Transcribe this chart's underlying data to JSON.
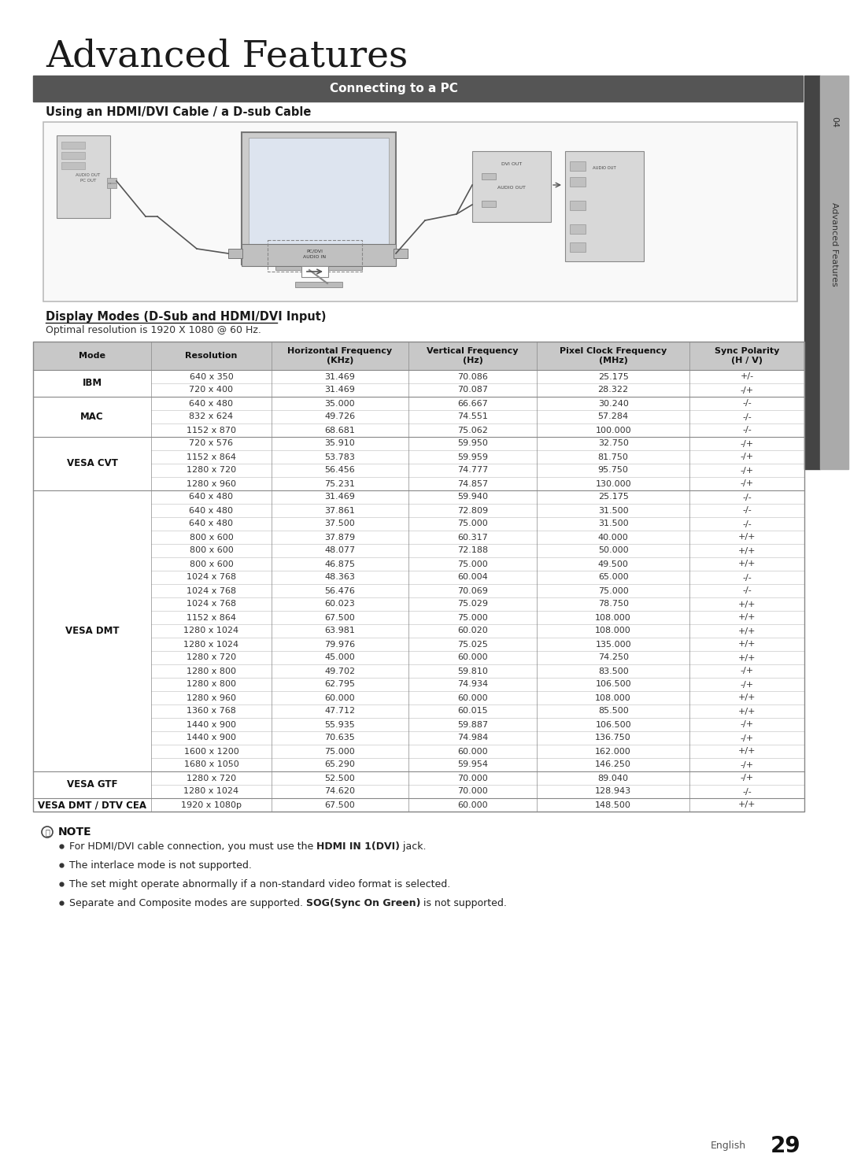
{
  "title": "Advanced Features",
  "section_header": "Connecting to a PC",
  "subsection": "Using an HDMI/DVI Cable / a D-sub Cable",
  "display_modes_title": "Display Modes (D-Sub and HDMI/DVI Input)",
  "optimal_resolution": "Optimal resolution is 1920 X 1080 @ 60 Hz.",
  "table_headers": [
    "Mode",
    "Resolution",
    "Horizontal Frequency\n(KHz)",
    "Vertical Frequency\n(Hz)",
    "Pixel Clock Frequency\n(MHz)",
    "Sync Polarity\n(H / V)"
  ],
  "table_data": [
    [
      "IBM",
      "640 x 350",
      "31.469",
      "70.086",
      "25.175",
      "+/-"
    ],
    [
      "IBM",
      "720 x 400",
      "31.469",
      "70.087",
      "28.322",
      "-/+"
    ],
    [
      "MAC",
      "640 x 480",
      "35.000",
      "66.667",
      "30.240",
      "-/-"
    ],
    [
      "MAC",
      "832 x 624",
      "49.726",
      "74.551",
      "57.284",
      "-/-"
    ],
    [
      "MAC",
      "1152 x 870",
      "68.681",
      "75.062",
      "100.000",
      "-/-"
    ],
    [
      "VESA CVT",
      "720 x 576",
      "35.910",
      "59.950",
      "32.750",
      "-/+"
    ],
    [
      "VESA CVT",
      "1152 x 864",
      "53.783",
      "59.959",
      "81.750",
      "-/+"
    ],
    [
      "VESA CVT",
      "1280 x 720",
      "56.456",
      "74.777",
      "95.750",
      "-/+"
    ],
    [
      "VESA CVT",
      "1280 x 960",
      "75.231",
      "74.857",
      "130.000",
      "-/+"
    ],
    [
      "VESA DMT",
      "640 x 480",
      "31.469",
      "59.940",
      "25.175",
      "-/-"
    ],
    [
      "VESA DMT",
      "640 x 480",
      "37.861",
      "72.809",
      "31.500",
      "-/-"
    ],
    [
      "VESA DMT",
      "640 x 480",
      "37.500",
      "75.000",
      "31.500",
      "-/-"
    ],
    [
      "VESA DMT",
      "800 x 600",
      "37.879",
      "60.317",
      "40.000",
      "+/+"
    ],
    [
      "VESA DMT",
      "800 x 600",
      "48.077",
      "72.188",
      "50.000",
      "+/+"
    ],
    [
      "VESA DMT",
      "800 x 600",
      "46.875",
      "75.000",
      "49.500",
      "+/+"
    ],
    [
      "VESA DMT",
      "1024 x 768",
      "48.363",
      "60.004",
      "65.000",
      "-/-"
    ],
    [
      "VESA DMT",
      "1024 x 768",
      "56.476",
      "70.069",
      "75.000",
      "-/-"
    ],
    [
      "VESA DMT",
      "1024 x 768",
      "60.023",
      "75.029",
      "78.750",
      "+/+"
    ],
    [
      "VESA DMT",
      "1152 x 864",
      "67.500",
      "75.000",
      "108.000",
      "+/+"
    ],
    [
      "VESA DMT",
      "1280 x 1024",
      "63.981",
      "60.020",
      "108.000",
      "+/+"
    ],
    [
      "VESA DMT",
      "1280 x 1024",
      "79.976",
      "75.025",
      "135.000",
      "+/+"
    ],
    [
      "VESA DMT",
      "1280 x 720",
      "45.000",
      "60.000",
      "74.250",
      "+/+"
    ],
    [
      "VESA DMT",
      "1280 x 800",
      "49.702",
      "59.810",
      "83.500",
      "-/+"
    ],
    [
      "VESA DMT",
      "1280 x 800",
      "62.795",
      "74.934",
      "106.500",
      "-/+"
    ],
    [
      "VESA DMT",
      "1280 x 960",
      "60.000",
      "60.000",
      "108.000",
      "+/+"
    ],
    [
      "VESA DMT",
      "1360 x 768",
      "47.712",
      "60.015",
      "85.500",
      "+/+"
    ],
    [
      "VESA DMT",
      "1440 x 900",
      "55.935",
      "59.887",
      "106.500",
      "-/+"
    ],
    [
      "VESA DMT",
      "1440 x 900",
      "70.635",
      "74.984",
      "136.750",
      "-/+"
    ],
    [
      "VESA DMT",
      "1600 x 1200",
      "75.000",
      "60.000",
      "162.000",
      "+/+"
    ],
    [
      "VESA DMT",
      "1680 x 1050",
      "65.290",
      "59.954",
      "146.250",
      "-/+"
    ],
    [
      "VESA GTF",
      "1280 x 720",
      "52.500",
      "70.000",
      "89.040",
      "-/+"
    ],
    [
      "VESA GTF",
      "1280 x 1024",
      "74.620",
      "70.000",
      "128.943",
      "-/-"
    ],
    [
      "VESA DMT / DTV CEA",
      "1920 x 1080p",
      "67.500",
      "60.000",
      "148.500",
      "+/+"
    ]
  ],
  "note_title": "NOTE",
  "notes": [
    "For HDMI/DVI cable connection, you must use the ​HDMI IN 1(DVI)​ jack.",
    "The interlace mode is not supported.",
    "The set might operate abnormally if a non-standard video format is selected.",
    "Separate and Composite modes are supported. ​SOG(Sync On Green)​ is not supported."
  ],
  "notes_bold": [
    [
      "For HDMI/DVI cable connection, you must use the ",
      "HDMI IN 1(DVI)",
      " jack."
    ],
    [
      "The interlace mode is not supported."
    ],
    [
      "The set might operate abnormally if a non-standard video format is selected."
    ],
    [
      "Separate and Composite modes are supported. ",
      "SOG(Sync On Green)",
      " is not supported."
    ]
  ],
  "page_number": "29",
  "bg_color": "#ffffff",
  "header_bg": "#555555",
  "header_text_color": "#ffffff",
  "table_header_bg": "#c8c8c8",
  "table_border_color": "#999999",
  "side_tab_dark": "#444444",
  "side_tab_light": "#aaaaaa"
}
